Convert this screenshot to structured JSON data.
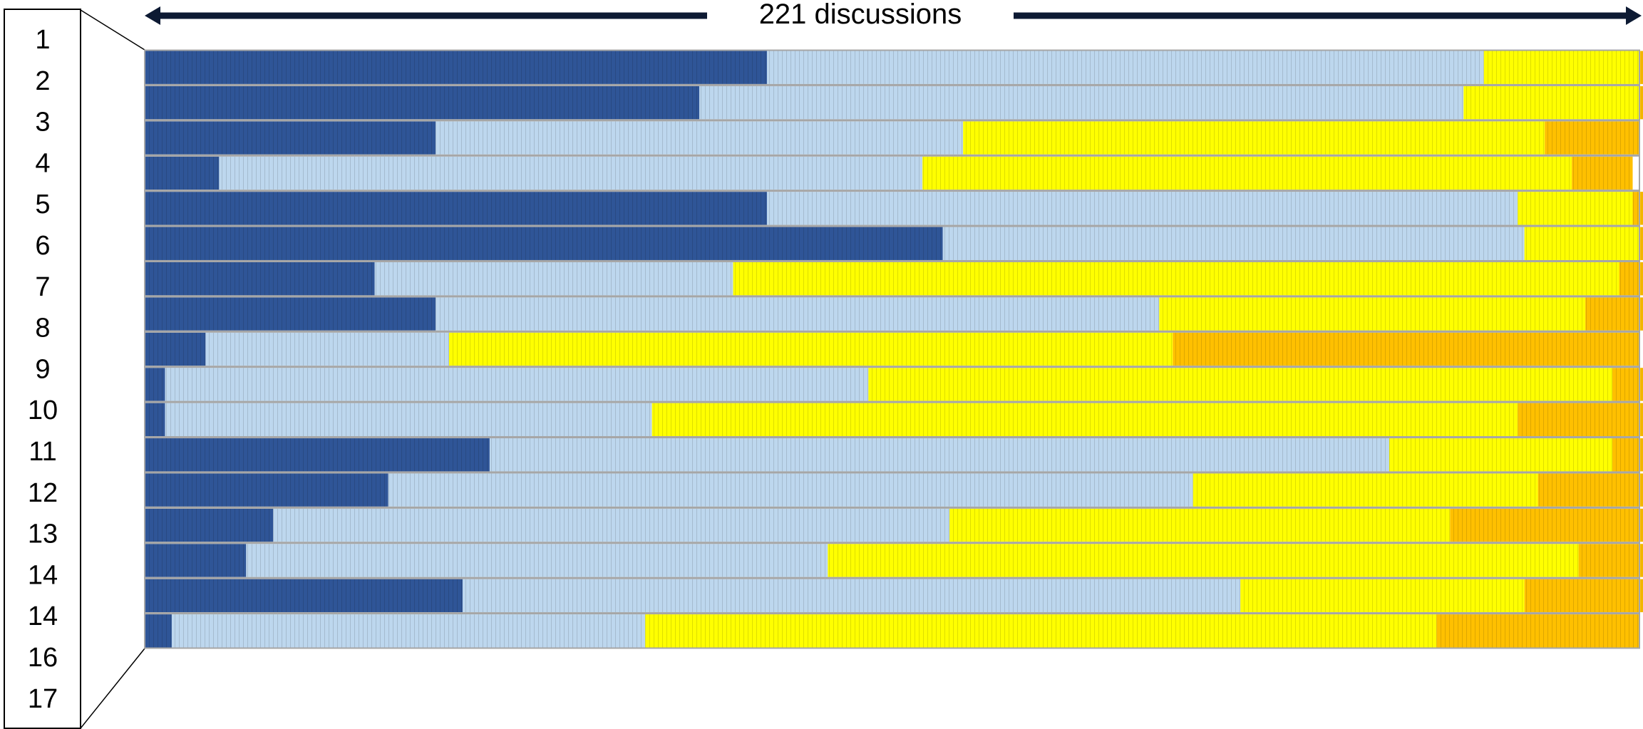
{
  "header": {
    "label": "221 discussions"
  },
  "row_labels": [
    "1",
    "2",
    "3",
    "4",
    "5",
    "6",
    "7",
    "8",
    "9",
    "10",
    "11",
    "12",
    "13",
    "14",
    "14",
    "16",
    "17"
  ],
  "colors": {
    "seg1": "#2f5597",
    "seg2": "#bdd7ee",
    "seg3": "#ffff00",
    "seg4": "#ffc000",
    "row_border": "#a6a6a6",
    "arrow": "#0d1a33",
    "frame": "#000000"
  },
  "chart_data": {
    "type": "bar",
    "orientation": "horizontal",
    "stacked": true,
    "total": 221,
    "xlim": [
      0,
      221
    ],
    "grid": false,
    "categories": [
      "1",
      "2",
      "3",
      "4",
      "5",
      "6",
      "7",
      "8",
      "9",
      "10",
      "11",
      "12",
      "13",
      "14",
      "14",
      "16",
      "17"
    ],
    "series": [
      {
        "values": [
          92,
          82,
          43,
          11,
          92,
          118,
          34,
          43,
          9,
          3,
          3,
          51,
          36,
          19,
          15,
          47,
          4
        ]
      },
      {
        "values": [
          106,
          113,
          78,
          104,
          111,
          86,
          53,
          107,
          36,
          104,
          72,
          133,
          119,
          100,
          86,
          115,
          70
        ]
      },
      {
        "values": [
          23,
          26,
          86,
          96,
          17,
          17,
          131,
          63,
          107,
          110,
          128,
          33,
          51,
          74,
          111,
          42,
          117
        ]
      },
      {
        "values": [
          1,
          1,
          14,
          9,
          2,
          1,
          4,
          9,
          69,
          5,
          20,
          5,
          16,
          31,
          10,
          18,
          30
        ]
      }
    ]
  }
}
